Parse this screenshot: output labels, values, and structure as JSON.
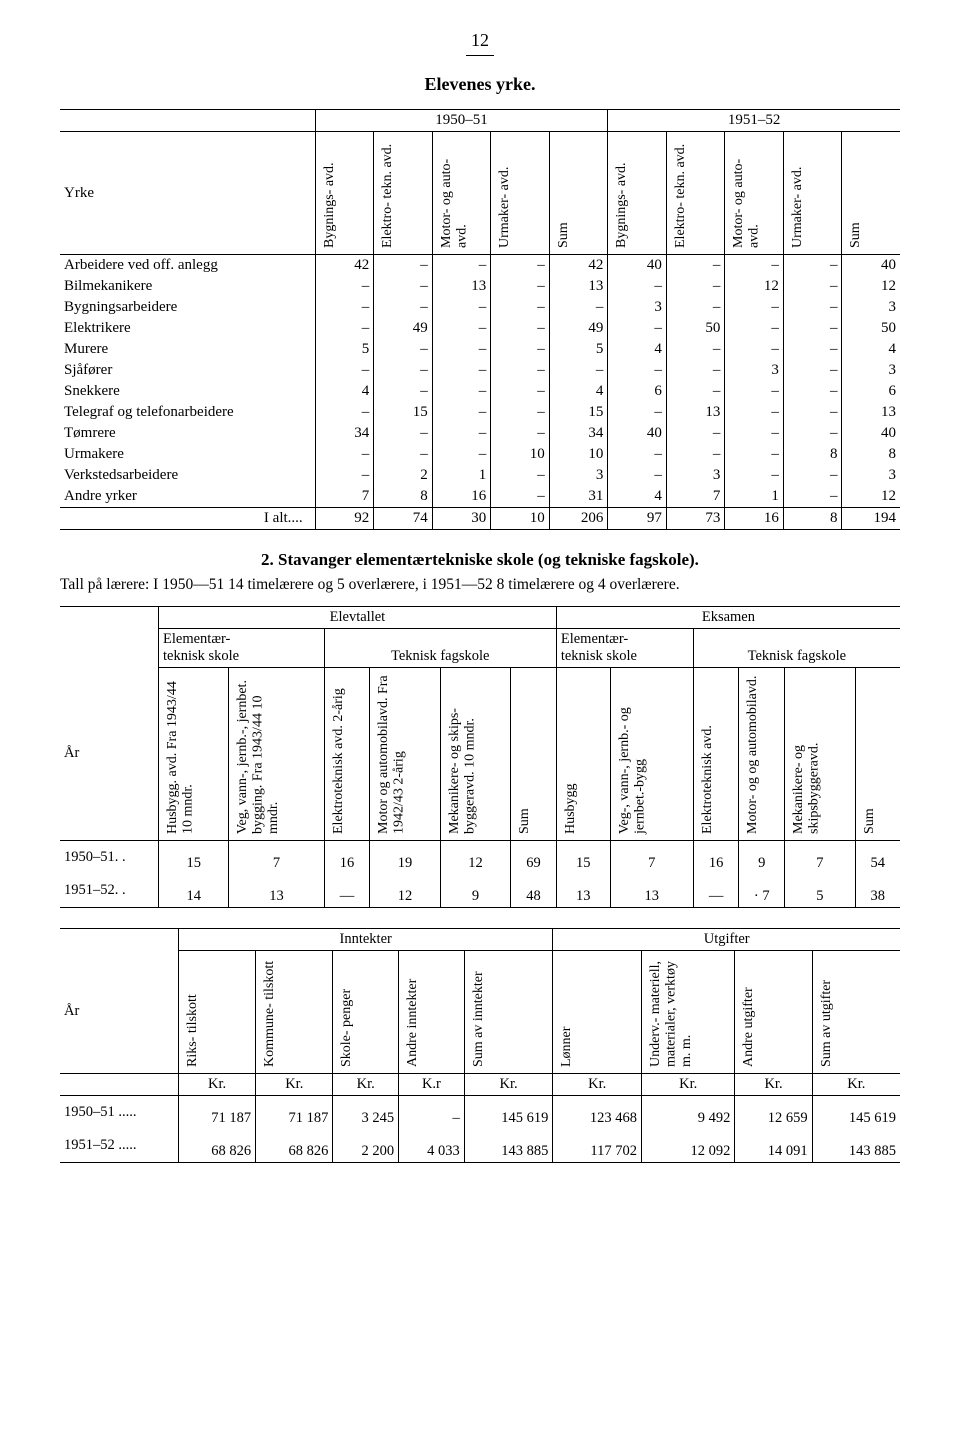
{
  "page_number": "12",
  "table1": {
    "title": "Elevenes yrke.",
    "row_header": "Yrke",
    "year_groups": [
      "1950–51",
      "1951–52"
    ],
    "col_headers": [
      "Bygnings-\navd.",
      "Elektro-\ntekn. avd.",
      "Motor- og\nauto-avd.",
      "Urmaker-\navd.",
      "Sum"
    ],
    "rows": [
      {
        "label": "Arbeidere ved off. anlegg",
        "v": [
          "42",
          "–",
          "–",
          "–",
          "42",
          "40",
          "–",
          "–",
          "–",
          "40"
        ]
      },
      {
        "label": "Bilmekanikere",
        "v": [
          "–",
          "–",
          "13",
          "–",
          "13",
          "–",
          "–",
          "12",
          "–",
          "12"
        ]
      },
      {
        "label": "Bygningsarbeidere",
        "v": [
          "–",
          "–",
          "–",
          "–",
          "–",
          "3",
          "–",
          "–",
          "–",
          "3"
        ]
      },
      {
        "label": "Elektrikere",
        "v": [
          "–",
          "49",
          "–",
          "–",
          "49",
          "–",
          "50",
          "–",
          "–",
          "50"
        ]
      },
      {
        "label": "Murere",
        "v": [
          "5",
          "–",
          "–",
          "–",
          "5",
          "4",
          "–",
          "–",
          "–",
          "4"
        ]
      },
      {
        "label": "Sjåfører",
        "v": [
          "–",
          "–",
          "–",
          "–",
          "–",
          "–",
          "–",
          "3",
          "–",
          "3"
        ]
      },
      {
        "label": "Snekkere",
        "v": [
          "4",
          "–",
          "–",
          "–",
          "4",
          "6",
          "–",
          "–",
          "–",
          "6"
        ]
      },
      {
        "label": "Telegraf og telefonarbeidere",
        "v": [
          "–",
          "15",
          "–",
          "–",
          "15",
          "–",
          "13",
          "–",
          "–",
          "13"
        ]
      },
      {
        "label": "Tømrere",
        "v": [
          "34",
          "–",
          "–",
          "–",
          "34",
          "40",
          "–",
          "–",
          "–",
          "40"
        ]
      },
      {
        "label": "Urmakere",
        "v": [
          "–",
          "–",
          "–",
          "10",
          "10",
          "–",
          "–",
          "–",
          "8",
          "8"
        ]
      },
      {
        "label": "Verkstedsarbeidere",
        "v": [
          "–",
          "2",
          "1",
          "–",
          "3",
          "–",
          "3",
          "–",
          "–",
          "3"
        ]
      },
      {
        "label": "Andre yrker",
        "v": [
          "7",
          "8",
          "16",
          "–",
          "31",
          "4",
          "7",
          "1",
          "–",
          "12"
        ]
      }
    ],
    "total_label": "I alt....",
    "total": [
      "92",
      "74",
      "30",
      "10",
      "206",
      "97",
      "73",
      "16",
      "8",
      "194"
    ]
  },
  "section2": {
    "heading": "2.   Stavanger elementærtekniske skole (og tekniske fagskole).",
    "para": "Tall på lærere: I 1950—51 14 timelærere og 5 overlærere, i 1951—52 8 timelærere og 4 overlærere."
  },
  "table2": {
    "row_header": "År",
    "super_groups": [
      "Elevtallet",
      "Eksamen"
    ],
    "sub_groups": [
      "Elementær-\nteknisk skole",
      "Teknisk fagskole",
      "Elementær-\nteknisk skole",
      "Teknisk fagskole"
    ],
    "cols": [
      "Husbygg. avd.\nFra 1943/44 10 mndr.",
      "Veg, vann-, jernb.-,\njernbet. bygging.\nFra 1943/44 10 mndr.",
      "Elektroteknisk\navd. 2-årig",
      "Motor og\nautomobilavd.\nFra 1942/43 2-årig",
      "Mekanikere- og skips-\nbyggeravd. 10 mndr.",
      "Sum",
      "Husbygg",
      "Veg-, vann-, jernb.-\nog jernbet.-bygg",
      "Elektroteknisk\navd.",
      "Motor- og\nog automobilavd.",
      "Mekanikere- og\nskipsbyggeravd.",
      "Sum"
    ],
    "rows": [
      {
        "label": "1950–51. .",
        "v": [
          "15",
          "7",
          "16",
          "19",
          "12",
          "69",
          "15",
          "7",
          "16",
          "9",
          "7",
          "54"
        ]
      },
      {
        "label": "1951–52. .",
        "v": [
          "14",
          "13",
          "—",
          "12",
          "9",
          "48",
          "13",
          "13",
          "—",
          "· 7",
          "5",
          "38"
        ]
      }
    ]
  },
  "table3": {
    "row_header": "År",
    "groups": [
      "Inntekter",
      "Utgifter"
    ],
    "cols": [
      "Riks-\ntilskott",
      "Kommune-\ntilskott",
      "Skole-\npenger",
      "Andre\ninntekter",
      "Sum av\ninntekter",
      "Lønner",
      "Underv.-\nmateriell,\nmaterialer,\nverktøy\nm. m.",
      "Andre\nutgifter",
      "Sum av\nutgifter"
    ],
    "unit_row": [
      "Kr.",
      "Kr.",
      "Kr.",
      "K.r",
      "Kr.",
      "Kr.",
      "Kr.",
      "Kr.",
      "Kr."
    ],
    "rows": [
      {
        "label": "1950–51 .....",
        "v": [
          "71 187",
          "71 187",
          "3 245",
          "–",
          "145 619",
          "123 468",
          "9 492",
          "12 659",
          "145 619"
        ]
      },
      {
        "label": "1951–52 .....",
        "v": [
          "68 826",
          "68 826",
          "2 200",
          "4 033",
          "143 885",
          "117 702",
          "12 092",
          "14 091",
          "143 885"
        ]
      }
    ]
  }
}
